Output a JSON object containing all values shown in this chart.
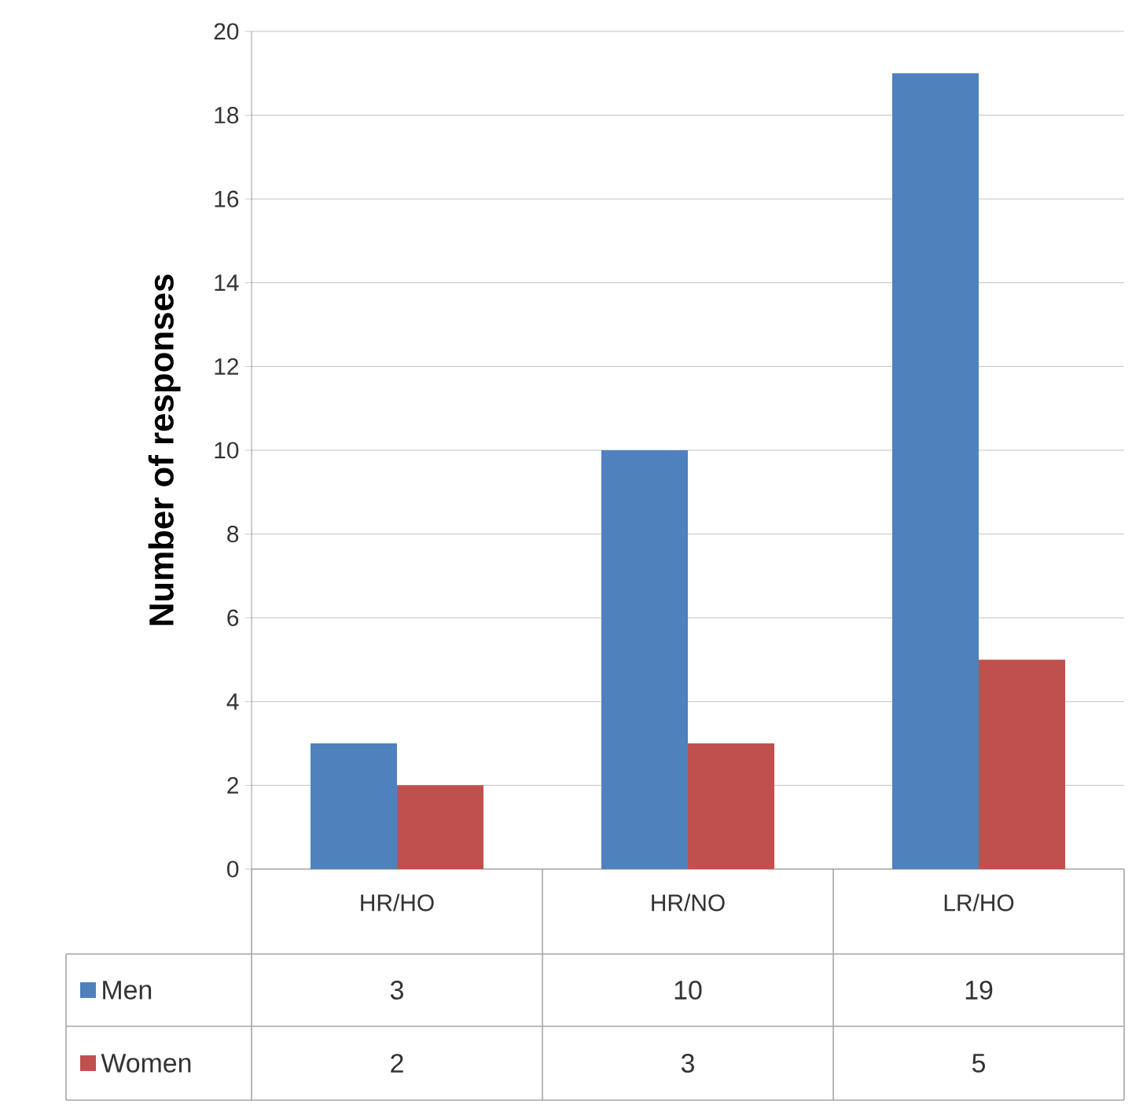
{
  "chart_data": {
    "type": "bar",
    "ylabel": "Number of responses",
    "categories": [
      "HR/HO",
      "HR/NO",
      "LR/HO"
    ],
    "series": [
      {
        "name": "Men",
        "color": "#4f81bd",
        "values": [
          3,
          10,
          19
        ]
      },
      {
        "name": "Women",
        "color": "#c0504d",
        "values": [
          2,
          3,
          5
        ]
      }
    ],
    "ylim": [
      0,
      20
    ],
    "yticks": [
      0,
      2,
      4,
      6,
      8,
      10,
      12,
      14,
      16,
      18,
      20
    ],
    "grid": "y",
    "legend": "bottom",
    "data_labels": true
  }
}
